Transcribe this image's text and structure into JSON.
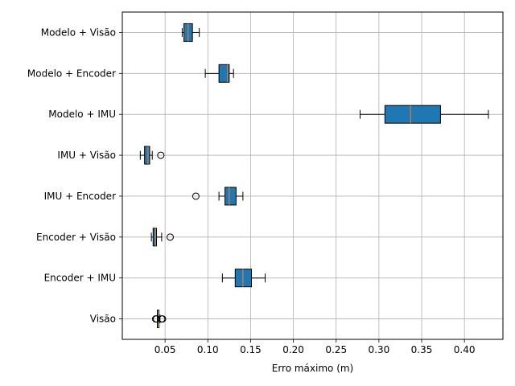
{
  "chart_data": {
    "type": "boxplot",
    "orientation": "horizontal",
    "xlabel": "Erro máximo (m)",
    "xlim": [
      0.0,
      0.445
    ],
    "xticks": [
      0.05,
      0.1,
      0.15,
      0.2,
      0.25,
      0.3,
      0.35,
      0.4
    ],
    "xtick_labels": [
      "0.05",
      "0.10",
      "0.15",
      "0.20",
      "0.25",
      "0.30",
      "0.35",
      "0.40"
    ],
    "grid": true,
    "box_color": "#1f77b4",
    "median_color": "#ff7f0e",
    "categories": [
      {
        "label": "Modelo + Visão",
        "whislo": 0.07,
        "q1": 0.072,
        "med": 0.077,
        "q3": 0.082,
        "whishi": 0.09,
        "fliers": []
      },
      {
        "label": "Modelo + Encoder",
        "whislo": 0.097,
        "q1": 0.113,
        "med": 0.123,
        "q3": 0.125,
        "whishi": 0.13,
        "fliers": []
      },
      {
        "label": "Modelo + IMU",
        "whislo": 0.278,
        "q1": 0.307,
        "med": 0.337,
        "q3": 0.372,
        "whishi": 0.428,
        "fliers": []
      },
      {
        "label": "IMU + Visão",
        "whislo": 0.021,
        "q1": 0.026,
        "med": 0.03,
        "q3": 0.032,
        "whishi": 0.035,
        "fliers": [
          0.045
        ]
      },
      {
        "label": "IMU + Encoder",
        "whislo": 0.113,
        "q1": 0.12,
        "med": 0.125,
        "q3": 0.133,
        "whishi": 0.141,
        "fliers": [
          0.086
        ]
      },
      {
        "label": "Encoder + Visão",
        "whislo": 0.034,
        "q1": 0.036,
        "med": 0.039,
        "q3": 0.04,
        "whishi": 0.046,
        "fliers": [
          0.056
        ]
      },
      {
        "label": "Encoder + IMU",
        "whislo": 0.117,
        "q1": 0.132,
        "med": 0.141,
        "q3": 0.151,
        "whishi": 0.167,
        "fliers": []
      },
      {
        "label": "Visão",
        "whislo": 0.041,
        "q1": 0.041,
        "med": 0.043,
        "q3": 0.043,
        "whishi": 0.044,
        "fliers": [
          0.039,
          0.04,
          0.046,
          0.047
        ]
      }
    ]
  }
}
